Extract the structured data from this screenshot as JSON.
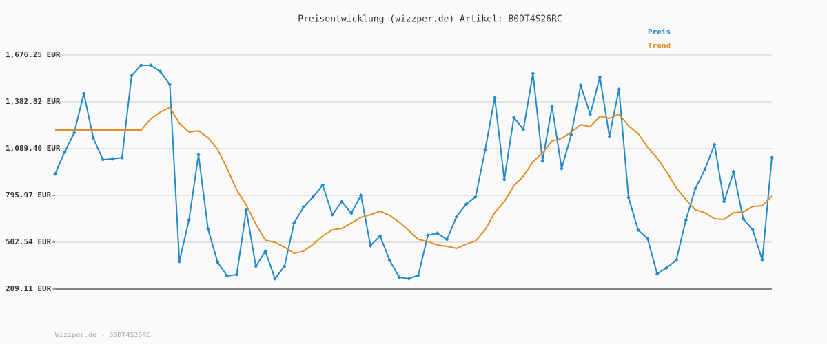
{
  "chart_data": {
    "type": "line",
    "title": "Preisentwicklung (wizzper.de) Artikel: B0DT4S26RC",
    "footer": "Wizzper.de - B0DT4S26RC",
    "ylim": [
      209.11,
      1676.25
    ],
    "yticks": [
      {
        "value": 209.11,
        "label": "209.11 EUR"
      },
      {
        "value": 502.54,
        "label": "502.54 EUR"
      },
      {
        "value": 795.97,
        "label": "795.97 EUR"
      },
      {
        "value": 1089.4,
        "label": "1,089.40 EUR"
      },
      {
        "value": 1382.82,
        "label": "1,382.82 EUR"
      },
      {
        "value": 1676.25,
        "label": "1,676.25 EUR"
      }
    ],
    "grid": true,
    "legend": "top-right",
    "series": [
      {
        "name": "Preis",
        "color": "#2288c8",
        "markers": true,
        "values": [
          930,
          1068,
          1189,
          1435,
          1154,
          1020,
          1025,
          1033,
          1547,
          1612,
          1612,
          1573,
          1491,
          382,
          641,
          1051,
          585,
          377,
          291,
          300,
          705,
          352,
          446,
          274,
          352,
          623,
          723,
          787,
          861,
          675,
          757,
          684,
          796,
          481,
          541,
          390,
          283,
          274,
          295,
          546,
          559,
          520,
          662,
          740,
          787,
          1081,
          1409,
          895,
          1284,
          1210,
          1560,
          1012,
          1353,
          964,
          1176,
          1486,
          1305,
          1538,
          1167,
          1461,
          783,
          580,
          524,
          304,
          343,
          390,
          641,
          839,
          960,
          1115,
          757,
          943,
          649,
          580,
          390,
          1033
        ]
      },
      {
        "name": "Trend",
        "color": "#e08c28",
        "markers": false,
        "values": [
          1206,
          1206,
          1206,
          1206,
          1206,
          1206,
          1206,
          1206,
          1206,
          1206,
          1275,
          1318,
          1348,
          1249,
          1193,
          1201,
          1158,
          1085,
          964,
          830,
          736,
          615,
          515,
          502,
          472,
          433,
          446,
          490,
          541,
          580,
          589,
          623,
          658,
          675,
          697,
          671,
          628,
          576,
          520,
          507,
          485,
          477,
          464,
          490,
          511,
          580,
          688,
          757,
          856,
          917,
          1007,
          1063,
          1137,
          1154,
          1193,
          1240,
          1227,
          1292,
          1279,
          1305,
          1232,
          1184,
          1098,
          1029,
          943,
          843,
          770,
          705,
          688,
          649,
          645,
          688,
          692,
          727,
          731,
          792
        ]
      }
    ]
  }
}
